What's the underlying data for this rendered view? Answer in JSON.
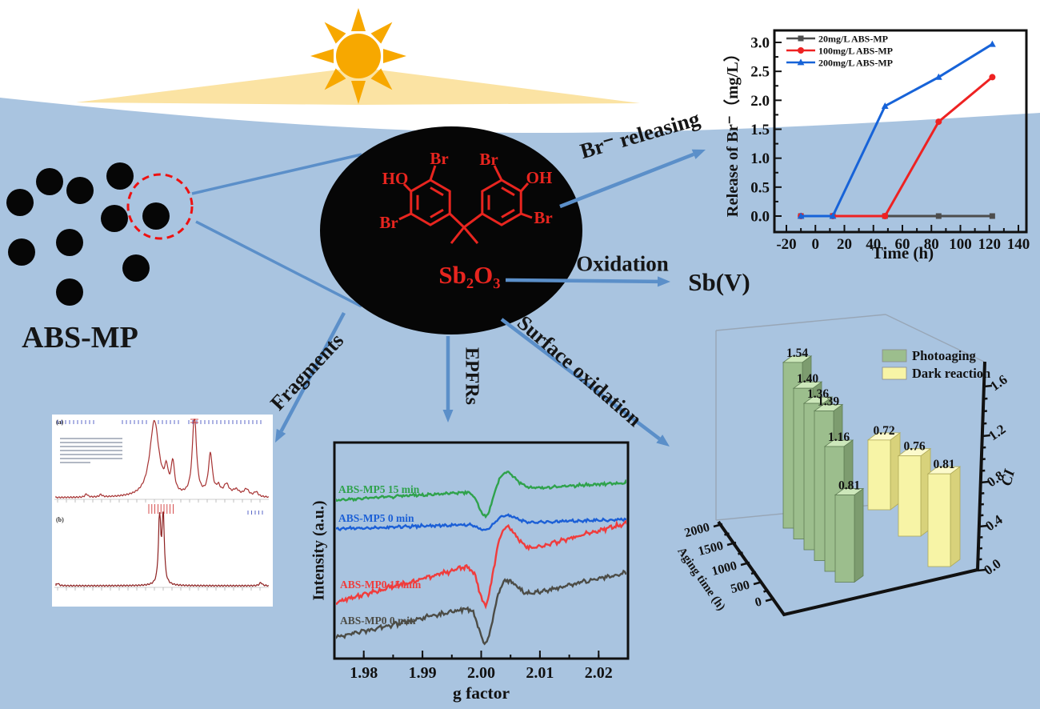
{
  "labels": {
    "abs_mp": "ABS-MP",
    "br_releasing": "Br⁻ releasing",
    "oxidation": "Oxidation",
    "sb_v": "Sb(V)",
    "fragments": "Fragments",
    "epfrs": "EPFRs",
    "surface_oxidation": "Surface oxidation"
  },
  "molecule": {
    "formula": "Sb₂O₃",
    "atom_labels": {
      "ho_left": "HO",
      "br_top_left": "Br",
      "br_bottom_left": "Br",
      "br_top_right": "Br",
      "oh_right": "OH",
      "br_bottom_right": "Br"
    }
  },
  "nmr": {
    "panel_a_label": "(a)",
    "panel_b_label": "(b)"
  },
  "colors": {
    "water": "#a9c4e0",
    "sun": "#f7a800",
    "beam": "#fbe3a3",
    "arrow": "#5b8fc9",
    "accent_red": "#e8251f",
    "particle_black": "#060606",
    "dashed_circle_red": "#ee1111"
  },
  "chart_data": [
    {
      "id": "br_release_vs_time",
      "type": "line",
      "xlabel": "Time (h)",
      "ylabel": "Release of Br⁻（mg/L）",
      "xlim": [
        -28,
        146
      ],
      "ylim": [
        -0.27,
        3.25
      ],
      "xticks": [
        "-20",
        "0",
        "20",
        "40",
        "60",
        "80",
        "100",
        "120",
        "140"
      ],
      "yticks": [
        "0.0",
        "0.5",
        "1.0",
        "1.5",
        "2.0",
        "2.5",
        "3.0"
      ],
      "grid": false,
      "legend_position": "top-left",
      "series": [
        {
          "name": "20mg/L ABS-MP",
          "color": "#4d4d4d",
          "marker": "square",
          "x": [
            -10,
            12,
            48,
            85,
            122
          ],
          "y": [
            0,
            0,
            0,
            0,
            0
          ]
        },
        {
          "name": "100mg/L ABS-MP",
          "color": "#ee2222",
          "marker": "circle",
          "x": [
            -10,
            12,
            48,
            85,
            122
          ],
          "y": [
            0,
            0,
            0,
            1.63,
            2.4
          ]
        },
        {
          "name": "200mg/L ABS-MP",
          "color": "#1763d8",
          "marker": "triangle",
          "x": [
            -10,
            12,
            48,
            85,
            122
          ],
          "y": [
            0,
            0,
            1.9,
            2.4,
            2.97
          ]
        }
      ]
    },
    {
      "id": "epr_spectra",
      "type": "line",
      "xlabel": "g factor",
      "ylabel": "Intensity (a.u.)",
      "xlim": [
        1.975,
        2.025
      ],
      "xticks": [
        "1.98",
        "1.99",
        "2.00",
        "2.01",
        "2.02"
      ],
      "description": "EPR first-derivative spectra, signal centered near g = 2.003",
      "series": [
        {
          "name": "ABS-MP5  15 min",
          "color": "#2fa24c"
        },
        {
          "name": "ABS-MP5  0 min",
          "color": "#1b5fd6"
        },
        {
          "name": "ABS-MP0  15 min",
          "color": "#f03c3c"
        },
        {
          "name": "ABS-MP0  0 min",
          "color": "#4c4c46"
        }
      ]
    },
    {
      "id": "carbonyl_index_3d",
      "type": "bar",
      "xlabel": "Aging time (h)",
      "ylabel": "CI",
      "x_tick_labels": [
        "0",
        "500",
        "1000",
        "1500",
        "2000"
      ],
      "ci_tick_labels": [
        "0.0",
        "0.4",
        "0.8",
        "1.2",
        "1.6"
      ],
      "legend_position": "top-right",
      "series": [
        {
          "name": "Photoaging",
          "color": "#9cbe8d",
          "values": [
            1.54,
            1.4,
            1.36,
            1.39,
            1.16,
            0.81
          ]
        },
        {
          "name": "Dark reaction",
          "color": "#f7f4a6",
          "values": [
            0.72,
            0.76,
            0.81
          ]
        }
      ]
    }
  ]
}
